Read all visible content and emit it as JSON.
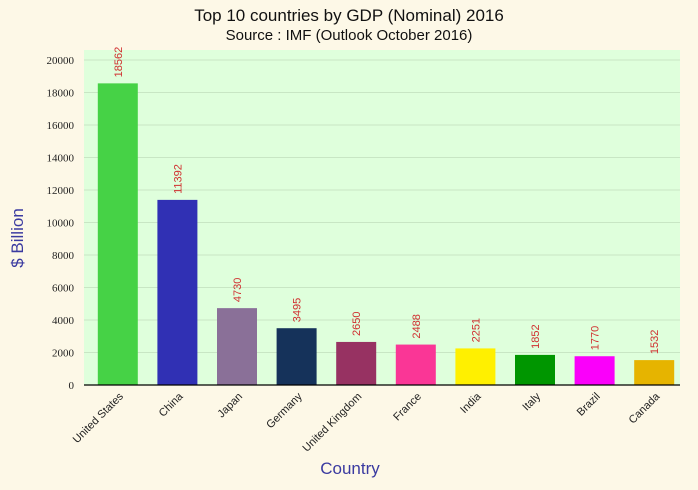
{
  "chart_data": {
    "type": "bar",
    "title": "Top 10 countries by GDP (Nominal) 2016",
    "subtitle": "Source : IMF (Outlook October 2016)",
    "xlabel": "Country",
    "ylabel": "$ Billion",
    "ylim": [
      0,
      20600
    ],
    "yticks": [
      0,
      2000,
      4000,
      6000,
      8000,
      10000,
      12000,
      14000,
      16000,
      18000,
      20000
    ],
    "grid": true,
    "categories": [
      "United States",
      "China",
      "Japan",
      "Germany",
      "United Kingdom",
      "France",
      "India",
      "Italy",
      "Brazil",
      "Canada"
    ],
    "values": [
      18562,
      11392,
      4730,
      3495,
      2650,
      2488,
      2251,
      1852,
      1770,
      1532
    ],
    "colors": [
      "#46d246",
      "#3030b4",
      "#8a7098",
      "#15325a",
      "#973262",
      "#fa3696",
      "#fff000",
      "#009600",
      "#fa00fa",
      "#e6b400"
    ],
    "plot_background": "#dfffdc",
    "label_color": "#d03030"
  }
}
